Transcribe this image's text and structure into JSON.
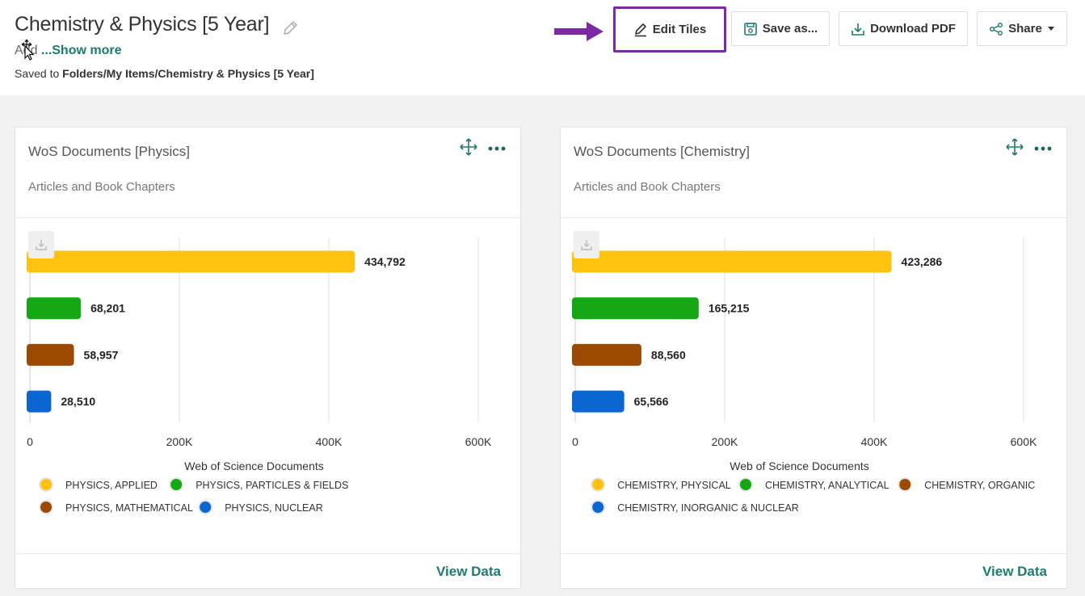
{
  "header": {
    "title": "Chemistry & Physics [5 Year]",
    "description_prefix": "Add",
    "show_more": "...Show more",
    "saved_prefix": "Saved to ",
    "saved_path": "Folders/My Items/Chemistry & Physics [5 Year]"
  },
  "toolbar": {
    "edit_tiles": "Edit Tiles",
    "save_as": "Save as...",
    "download_pdf": "Download PDF",
    "share": "Share",
    "highlight_color": "#7b2aa3"
  },
  "tiles": [
    {
      "title": "WoS Documents [Physics]",
      "subtitle": "Articles and Book Chapters",
      "view_data": "View Data",
      "chart_data": {
        "type": "bar",
        "orientation": "horizontal",
        "categories": [
          "PHYSICS, APPLIED",
          "PHYSICS, PARTICLES & FIELDS",
          "PHYSICS, MATHEMATICAL",
          "PHYSICS, NUCLEAR"
        ],
        "values": [
          434792,
          68201,
          58957,
          28510
        ],
        "value_labels": [
          "434,792",
          "68,201",
          "58,957",
          "28,510"
        ],
        "colors": [
          "#ffc20e",
          "#14a814",
          "#9b4a00",
          "#0a67d1"
        ],
        "xlabel": "Web of Science Documents",
        "xlim": [
          0,
          600000
        ],
        "xticks": [
          0,
          200000,
          400000,
          600000
        ],
        "xtick_labels": [
          "0",
          "200K",
          "400K",
          "600K"
        ],
        "grid": true,
        "legend": "bottom"
      }
    },
    {
      "title": "WoS Documents [Chemistry]",
      "subtitle": "Articles and Book Chapters",
      "view_data": "View Data",
      "chart_data": {
        "type": "bar",
        "orientation": "horizontal",
        "categories": [
          "CHEMISTRY, PHYSICAL",
          "CHEMISTRY, ANALYTICAL",
          "CHEMISTRY, ORGANIC",
          "CHEMISTRY, INORGANIC & NUCLEAR"
        ],
        "values": [
          423286,
          165215,
          88560,
          65566
        ],
        "value_labels": [
          "423,286",
          "165,215",
          "88,560",
          "65,566"
        ],
        "colors": [
          "#ffc20e",
          "#14a814",
          "#9b4a00",
          "#0a67d1"
        ],
        "xlabel": "Web of Science Documents",
        "xlim": [
          0,
          600000
        ],
        "xticks": [
          0,
          200000,
          400000,
          600000
        ],
        "xtick_labels": [
          "0",
          "200K",
          "400K",
          "600K"
        ],
        "grid": true,
        "legend": "bottom"
      }
    }
  ]
}
